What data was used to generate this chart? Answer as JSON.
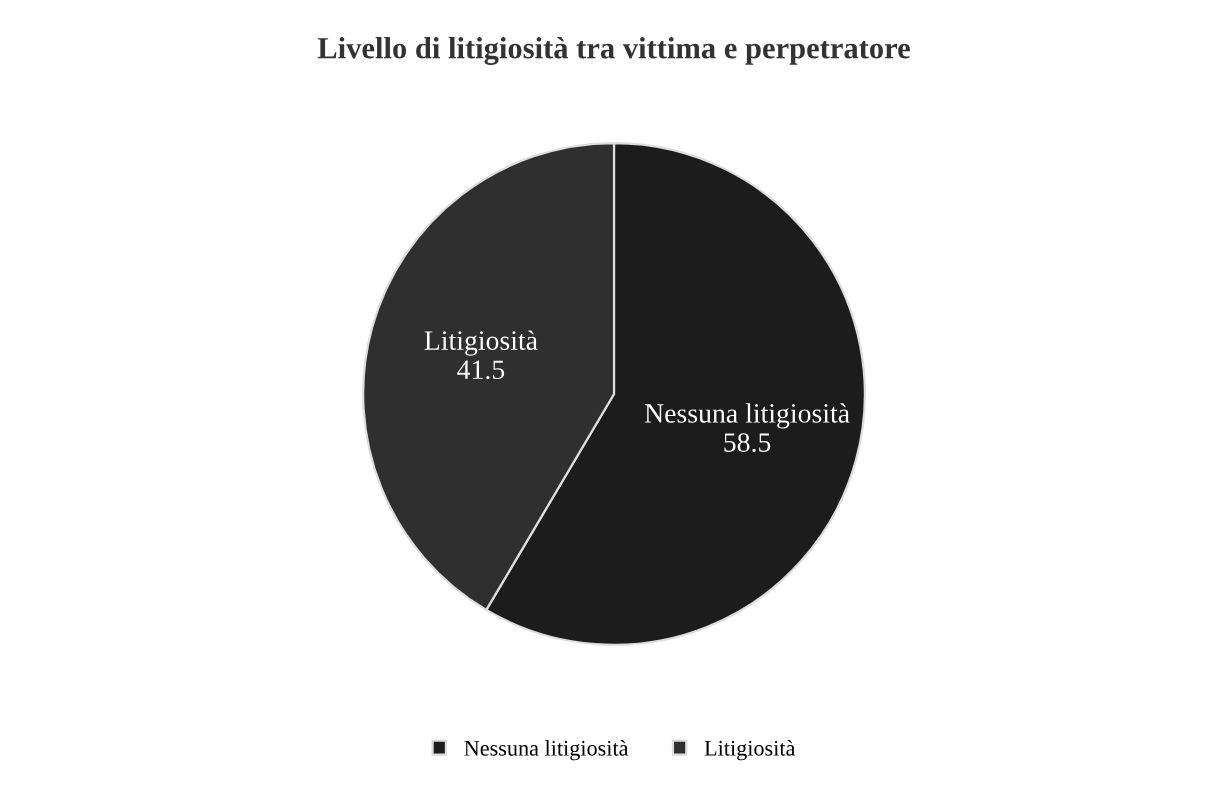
{
  "chart_data": {
    "type": "pie",
    "title": "Livello di litigiosità tra vittima e perpetratore",
    "categories": [
      "Nessuna litigiosità",
      "Litigiosità"
    ],
    "values": [
      58.5,
      41.5
    ],
    "colors": [
      "#1c1c1c",
      "#2f2f2f"
    ],
    "data_labels": true,
    "legend": "bottom"
  }
}
